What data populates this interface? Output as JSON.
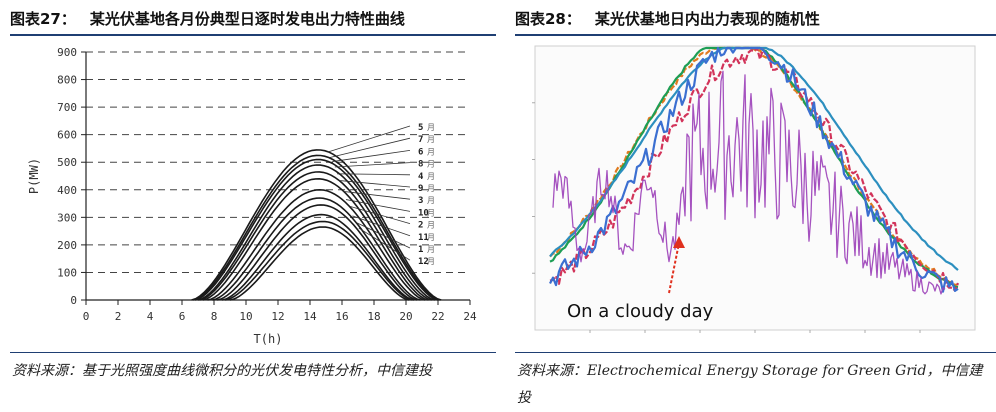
{
  "left": {
    "figure_label": "图表27：",
    "title": "某光伏基地各月份典型日逐时发电出力特性曲线",
    "source": "资料来源：基于光照强度曲线微积分的光伏发电特性分析，中信建投",
    "chart_data": {
      "type": "line",
      "xlabel": "T(h)",
      "ylabel": "P(MW)",
      "xlim": [
        0,
        24
      ],
      "ylim": [
        0,
        900
      ],
      "xticks": [
        "0",
        "2",
        "4",
        "6",
        "8",
        "10",
        "12",
        "14",
        "16",
        "18",
        "20",
        "22",
        "24"
      ],
      "yticks": [
        "0",
        "100",
        "200",
        "300",
        "400",
        "500",
        "600",
        "700",
        "800",
        "900"
      ],
      "grid": "horizontal dashed",
      "series": [
        {
          "name": "5月",
          "start": 6.6,
          "end": 22.2,
          "peak_x": 14.5,
          "peak": 545
        },
        {
          "name": "7月",
          "start": 6.7,
          "end": 22.1,
          "peak_x": 14.5,
          "peak": 525
        },
        {
          "name": "6月",
          "start": 6.8,
          "end": 22.0,
          "peak_x": 14.5,
          "peak": 510
        },
        {
          "name": "8月",
          "start": 7.0,
          "end": 21.8,
          "peak_x": 14.5,
          "peak": 490
        },
        {
          "name": "4月",
          "start": 7.1,
          "end": 21.6,
          "peak_x": 14.5,
          "peak": 465
        },
        {
          "name": "9月",
          "start": 7.3,
          "end": 21.4,
          "peak_x": 14.5,
          "peak": 440
        },
        {
          "name": "3月",
          "start": 7.6,
          "end": 21.2,
          "peak_x": 14.6,
          "peak": 400
        },
        {
          "name": "10月",
          "start": 7.9,
          "end": 20.9,
          "peak_x": 14.6,
          "peak": 370
        },
        {
          "name": "2月",
          "start": 8.2,
          "end": 20.7,
          "peak_x": 14.7,
          "peak": 345
        },
        {
          "name": "11月",
          "start": 8.5,
          "end": 20.5,
          "peak_x": 14.7,
          "peak": 310
        },
        {
          "name": "1月",
          "start": 8.7,
          "end": 20.4,
          "peak_x": 14.8,
          "peak": 285
        },
        {
          "name": "12月",
          "start": 9.0,
          "end": 20.2,
          "peak_x": 14.8,
          "peak": 265
        }
      ],
      "legend_labels": [
        "5",
        "7",
        "6",
        "8",
        "4",
        "9",
        "3",
        "10",
        "2",
        "11",
        "1",
        "12"
      ],
      "legend_suffix": "月"
    }
  },
  "right": {
    "figure_label": "图表28：",
    "title": "某光伏基地日内出力表现的随机性",
    "source": "资料来源：Electrochemical Energy Storage for Green Grid，中信建投",
    "annotation": "On a cloudy day",
    "chart_data": {
      "type": "line",
      "description": "multiple daily PV output curves, one cloudy-day series highly volatile",
      "colors": [
        "#2c8fbf",
        "#e07a1f",
        "#1d9e55",
        "#9b3fb8",
        "#d2345a",
        "#3b6fd1"
      ],
      "annotation_color": "#e0301e"
    }
  }
}
